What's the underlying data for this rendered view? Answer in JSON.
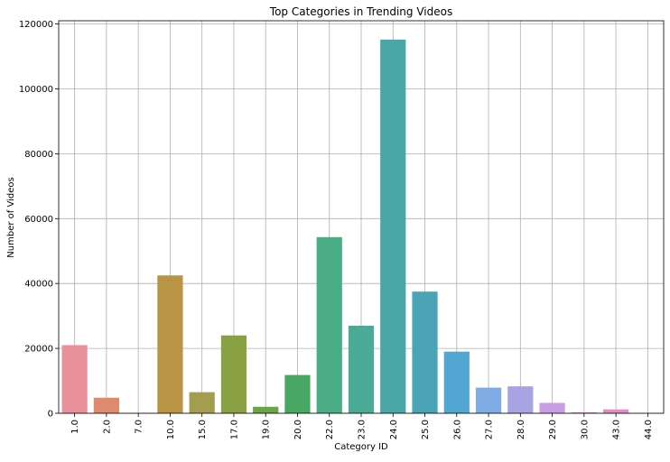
{
  "chart_data": {
    "type": "bar",
    "title": "Top Categories in Trending Videos",
    "xlabel": "Category ID",
    "ylabel": "Number of Videos",
    "categories": [
      "1.0",
      "2.0",
      "7.0",
      "10.0",
      "15.0",
      "17.0",
      "19.0",
      "20.0",
      "22.0",
      "23.0",
      "24.0",
      "25.0",
      "26.0",
      "27.0",
      "28.0",
      "29.0",
      "30.0",
      "43.0",
      "44.0"
    ],
    "values": [
      21000,
      4800,
      100,
      42500,
      6500,
      24000,
      2000,
      11800,
      54300,
      27000,
      115200,
      37500,
      19000,
      7900,
      8300,
      3200,
      300,
      1200,
      50
    ],
    "colors": [
      "#e8919b",
      "#dd8a6d",
      "#c9954f",
      "#b99444",
      "#a39e4f",
      "#8aa143",
      "#6aa549",
      "#49a764",
      "#4aad86",
      "#4aab99",
      "#4aa7a8",
      "#4aa4b5",
      "#51a6d2",
      "#80ace6",
      "#a8a4e4",
      "#c99ee4",
      "#db90d6",
      "#e68cc5",
      "#ea8fb1"
    ],
    "ylim": [
      0,
      121000
    ],
    "yticks": [
      0,
      20000,
      40000,
      60000,
      80000,
      100000,
      120000
    ],
    "ytick_labels": [
      "0",
      "20000",
      "40000",
      "60000",
      "80000",
      "100000",
      "120000"
    ],
    "grid": true
  }
}
